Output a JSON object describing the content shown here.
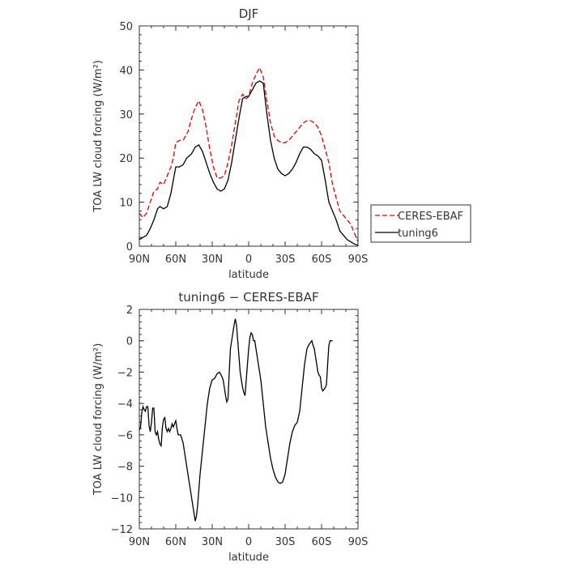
{
  "chart_data": [
    {
      "type": "line",
      "title": "DJF",
      "xlabel": "latitude",
      "ylabel": "TOA LW cloud forcing (W/m²)",
      "xlim": [
        90,
        -90
      ],
      "ylim": [
        0,
        50
      ],
      "xticks": [
        {
          "value": 90,
          "label": "90N"
        },
        {
          "value": 60,
          "label": "60N"
        },
        {
          "value": 30,
          "label": "30N"
        },
        {
          "value": 0,
          "label": "0"
        },
        {
          "value": -30,
          "label": "30S"
        },
        {
          "value": -60,
          "label": "60S"
        },
        {
          "value": -90,
          "label": "90S"
        }
      ],
      "yticks": [
        0,
        10,
        20,
        30,
        40,
        50
      ],
      "legend_position": "outside-right",
      "series": [
        {
          "name": "CERES-EBAF",
          "color": "#e60000",
          "dash": "dashed",
          "points": [
            [
              90,
              7.5
            ],
            [
              87,
              6.5
            ],
            [
              84,
              7.5
            ],
            [
              81,
              10
            ],
            [
              78,
              12.5
            ],
            [
              75,
              13
            ],
            [
              73,
              14.5
            ],
            [
              70,
              14
            ],
            [
              67,
              16
            ],
            [
              64,
              18
            ],
            [
              62,
              20
            ],
            [
              60,
              23.5
            ],
            [
              57,
              24
            ],
            [
              54,
              24
            ],
            [
              50,
              26
            ],
            [
              47,
              29
            ],
            [
              44,
              31.5
            ],
            [
              41,
              33
            ],
            [
              38,
              31
            ],
            [
              35,
              27
            ],
            [
              32,
              22
            ],
            [
              29,
              18
            ],
            [
              26,
              15.5
            ],
            [
              23,
              15.5
            ],
            [
              20,
              16
            ],
            [
              17,
              19
            ],
            [
              14,
              23
            ],
            [
              11,
              28
            ],
            [
              8,
              33
            ],
            [
              5,
              34.5
            ],
            [
              2,
              33.5
            ],
            [
              0,
              34
            ],
            [
              -3,
              37
            ],
            [
              -6,
              39
            ],
            [
              -9,
              40.5
            ],
            [
              -12,
              38.5
            ],
            [
              -15,
              33
            ],
            [
              -18,
              28
            ],
            [
              -21,
              25
            ],
            [
              -24,
              24
            ],
            [
              -27,
              23.5
            ],
            [
              -30,
              23.5
            ],
            [
              -33,
              24
            ],
            [
              -36,
              25
            ],
            [
              -39,
              26
            ],
            [
              -42,
              27
            ],
            [
              -45,
              28
            ],
            [
              -48,
              28.5
            ],
            [
              -51,
              28.5
            ],
            [
              -54,
              28
            ],
            [
              -57,
              27
            ],
            [
              -60,
              25
            ],
            [
              -63,
              22
            ],
            [
              -66,
              19
            ],
            [
              -69,
              14
            ],
            [
              -72,
              11
            ],
            [
              -75,
              8
            ],
            [
              -78,
              7
            ],
            [
              -81,
              6
            ],
            [
              -84,
              5
            ],
            [
              -87,
              3
            ],
            [
              -90,
              1
            ]
          ]
        },
        {
          "name": "tuning6",
          "color": "#000000",
          "dash": "solid",
          "points": [
            [
              90,
              1.5
            ],
            [
              87,
              2
            ],
            [
              84,
              2.5
            ],
            [
              81,
              4
            ],
            [
              78,
              6
            ],
            [
              75,
              8.5
            ],
            [
              73,
              9
            ],
            [
              70,
              8.5
            ],
            [
              67,
              9
            ],
            [
              64,
              12
            ],
            [
              62,
              15
            ],
            [
              60,
              18
            ],
            [
              57,
              18
            ],
            [
              54,
              18.5
            ],
            [
              51,
              20
            ],
            [
              47,
              21
            ],
            [
              44,
              22.5
            ],
            [
              41,
              23
            ],
            [
              38,
              21.5
            ],
            [
              35,
              19
            ],
            [
              32,
              16.5
            ],
            [
              29,
              14.5
            ],
            [
              26,
              13
            ],
            [
              23,
              12.5
            ],
            [
              20,
              13
            ],
            [
              17,
              15
            ],
            [
              14,
              19
            ],
            [
              11,
              24
            ],
            [
              8,
              29
            ],
            [
              5,
              33.5
            ],
            [
              2,
              34
            ],
            [
              0,
              34
            ],
            [
              -3,
              35.5
            ],
            [
              -6,
              37
            ],
            [
              -9,
              37.5
            ],
            [
              -12,
              37
            ],
            [
              -15,
              30
            ],
            [
              -18,
              24
            ],
            [
              -21,
              20
            ],
            [
              -24,
              17.5
            ],
            [
              -27,
              16.5
            ],
            [
              -30,
              16
            ],
            [
              -33,
              16.5
            ],
            [
              -36,
              17.5
            ],
            [
              -39,
              19
            ],
            [
              -42,
              21
            ],
            [
              -45,
              22.5
            ],
            [
              -48,
              22.5
            ],
            [
              -51,
              22
            ],
            [
              -54,
              21
            ],
            [
              -57,
              20.5
            ],
            [
              -60,
              19.5
            ],
            [
              -63,
              15
            ],
            [
              -66,
              10
            ],
            [
              -69,
              8
            ],
            [
              -72,
              6
            ],
            [
              -75,
              3.5
            ],
            [
              -78,
              2.5
            ],
            [
              -81,
              1.5
            ],
            [
              -84,
              1
            ],
            [
              -87,
              0.5
            ],
            [
              -90,
              0.2
            ]
          ]
        }
      ]
    },
    {
      "type": "line",
      "title": "tuning6 − CERES-EBAF",
      "xlabel": "latitude",
      "ylabel": "TOA LW cloud forcing (W/m²)",
      "xlim": [
        90,
        -90
      ],
      "ylim": [
        -12,
        2
      ],
      "xticks": [
        {
          "value": 90,
          "label": "90N"
        },
        {
          "value": 60,
          "label": "60N"
        },
        {
          "value": 30,
          "label": "30N"
        },
        {
          "value": 0,
          "label": "0"
        },
        {
          "value": -30,
          "label": "30S"
        },
        {
          "value": -60,
          "label": "60S"
        },
        {
          "value": -90,
          "label": "90S"
        }
      ],
      "yticks": [
        -12,
        -10,
        -8,
        -6,
        -4,
        -2,
        0,
        2
      ],
      "series": [
        {
          "name": "",
          "color": "#000000",
          "dash": "solid",
          "points": [
            [
              90,
              -5.7
            ],
            [
              89,
              -5.5
            ],
            [
              88,
              -4.6
            ],
            [
              87,
              -4.2
            ],
            [
              86,
              -4.4
            ],
            [
              85,
              -4.5
            ],
            [
              84,
              -4.2
            ],
            [
              83,
              -4.2
            ],
            [
              82,
              -5.4
            ],
            [
              81,
              -5.8
            ],
            [
              80,
              -5.2
            ],
            [
              79,
              -4.3
            ],
            [
              78,
              -4.3
            ],
            [
              77,
              -5.8
            ],
            [
              76,
              -6
            ],
            [
              75,
              -5.8
            ],
            [
              74,
              -6.3
            ],
            [
              73,
              -6.6
            ],
            [
              72,
              -6.7
            ],
            [
              71,
              -5.5
            ],
            [
              70,
              -5
            ],
            [
              69,
              -4.9
            ],
            [
              68,
              -5.6
            ],
            [
              67,
              -5.8
            ],
            [
              66,
              -5.6
            ],
            [
              65,
              -5.8
            ],
            [
              64,
              -5.6
            ],
            [
              63,
              -5.3
            ],
            [
              62,
              -5.5
            ],
            [
              61,
              -5.3
            ],
            [
              60,
              -5.1
            ],
            [
              59,
              -5.6
            ],
            [
              58,
              -6
            ],
            [
              56,
              -6
            ],
            [
              54,
              -6.5
            ],
            [
              52,
              -7.5
            ],
            [
              50,
              -8.5
            ],
            [
              48,
              -9.5
            ],
            [
              46,
              -10.5
            ],
            [
              45,
              -11
            ],
            [
              44,
              -11.5
            ],
            [
              43,
              -11.2
            ],
            [
              42,
              -10.5
            ],
            [
              41,
              -9.5
            ],
            [
              40,
              -8.5
            ],
            [
              38,
              -7
            ],
            [
              36,
              -5.5
            ],
            [
              34,
              -4
            ],
            [
              32,
              -3
            ],
            [
              30,
              -2.5
            ],
            [
              28,
              -2.4
            ],
            [
              26,
              -2.1
            ],
            [
              24,
              -2
            ],
            [
              22,
              -2.3
            ],
            [
              21,
              -2.5
            ],
            [
              20,
              -3
            ],
            [
              19,
              -3.5
            ],
            [
              18,
              -3.9
            ],
            [
              17,
              -3.7
            ],
            [
              16,
              -2
            ],
            [
              15,
              -0.5
            ],
            [
              14,
              0
            ],
            [
              13,
              0.5
            ],
            [
              12,
              1
            ],
            [
              11,
              1.4
            ],
            [
              10,
              1
            ],
            [
              9,
              0
            ],
            [
              8,
              -1
            ],
            [
              7,
              -2
            ],
            [
              6,
              -2.5
            ],
            [
              5,
              -3
            ],
            [
              4,
              -3.3
            ],
            [
              3,
              -3.5
            ],
            [
              2,
              -2.5
            ],
            [
              1,
              -1.5
            ],
            [
              0,
              -0.5
            ],
            [
              -1,
              0.2
            ],
            [
              -2,
              0.5
            ],
            [
              -3,
              0.4
            ],
            [
              -4,
              0
            ],
            [
              -5,
              0
            ],
            [
              -6,
              -0.5
            ],
            [
              -7,
              -1
            ],
            [
              -8,
              -1.5
            ],
            [
              -10,
              -2.5
            ],
            [
              -12,
              -4
            ],
            [
              -14,
              -5.5
            ],
            [
              -16,
              -6.5
            ],
            [
              -18,
              -7.5
            ],
            [
              -20,
              -8.2
            ],
            [
              -22,
              -8.7
            ],
            [
              -24,
              -9
            ],
            [
              -26,
              -9.1
            ],
            [
              -28,
              -9
            ],
            [
              -30,
              -8.5
            ],
            [
              -32,
              -7.5
            ],
            [
              -34,
              -6.5
            ],
            [
              -36,
              -5.8
            ],
            [
              -38,
              -5.4
            ],
            [
              -40,
              -5.2
            ],
            [
              -42,
              -4.5
            ],
            [
              -44,
              -3
            ],
            [
              -46,
              -1.5
            ],
            [
              -48,
              -0.5
            ],
            [
              -50,
              -0.2
            ],
            [
              -52,
              0
            ],
            [
              -53,
              -0.3
            ],
            [
              -54,
              -0.5
            ],
            [
              -55,
              -1
            ],
            [
              -56,
              -1.5
            ],
            [
              -57,
              -2
            ],
            [
              -58,
              -2.2
            ],
            [
              -59,
              -2.3
            ],
            [
              -60,
              -3
            ],
            [
              -61,
              -3.2
            ],
            [
              -62,
              -3.1
            ],
            [
              -63,
              -3.0
            ],
            [
              -64,
              -2.8
            ],
            [
              -65,
              -1.5
            ],
            [
              -66,
              -0.3
            ],
            [
              -67,
              0
            ],
            [
              -68,
              0
            ],
            [
              -69,
              0
            ]
          ]
        }
      ]
    }
  ]
}
